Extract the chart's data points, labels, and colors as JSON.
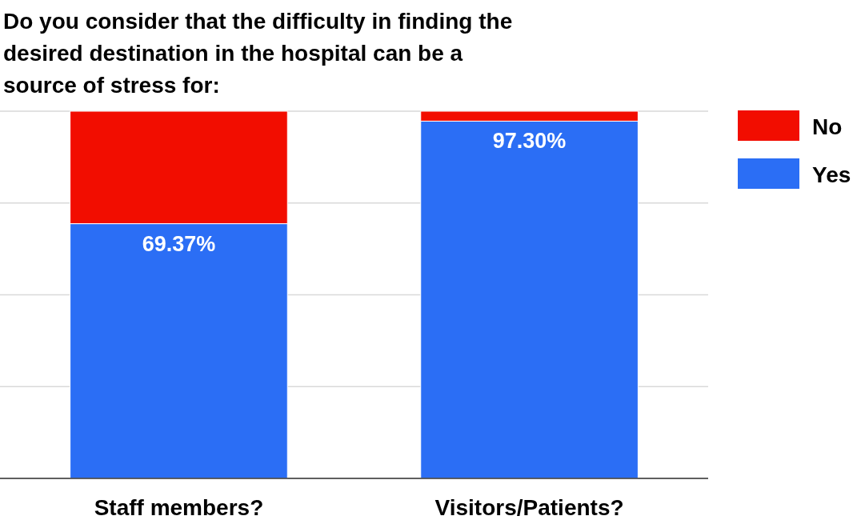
{
  "chart_data": {
    "type": "bar",
    "title": "Do you consider that the difficulty in finding the desired destination in the hospital can be a source of stress for:",
    "categories": [
      "Staff members?",
      "Visitors/Patients?"
    ],
    "stacked": true,
    "series": [
      {
        "name": "Yes",
        "color": "#2b6ef5",
        "values": [
          69.37,
          97.3
        ],
        "value_labels": [
          "69.37%",
          "97.30%"
        ]
      },
      {
        "name": "No",
        "color": "#f20d00",
        "values": [
          30.63,
          2.7
        ]
      }
    ],
    "ylim": [
      0,
      100
    ],
    "yticks": [
      {
        "value": 0,
        "label": null
      },
      {
        "value": 25,
        "label": null
      },
      {
        "value": 50,
        "label": null
      },
      {
        "value": 75,
        "label": null
      },
      {
        "value": 100,
        "label": null
      }
    ],
    "grid": "y",
    "tick_labels": "x",
    "legend": "top right"
  }
}
